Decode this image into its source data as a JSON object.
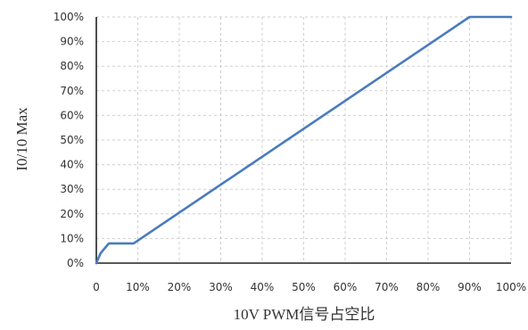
{
  "chart_data": {
    "type": "line",
    "title": "",
    "xlabel": "10V PWM信号占空比",
    "ylabel": "I0/10 Max",
    "xlim": [
      0,
      100
    ],
    "ylim": [
      0,
      100
    ],
    "x_ticks": [
      {
        "value": 0,
        "label": "0"
      },
      {
        "value": 10,
        "label": "10%"
      },
      {
        "value": 20,
        "label": "20%"
      },
      {
        "value": 30,
        "label": "30%"
      },
      {
        "value": 40,
        "label": "40%"
      },
      {
        "value": 50,
        "label": "50%"
      },
      {
        "value": 60,
        "label": "60%"
      },
      {
        "value": 70,
        "label": "70%"
      },
      {
        "value": 80,
        "label": "80%"
      },
      {
        "value": 90,
        "label": "90%"
      },
      {
        "value": 100,
        "label": "100%"
      }
    ],
    "y_ticks": [
      {
        "value": 0,
        "label": "0%"
      },
      {
        "value": 10,
        "label": "10%"
      },
      {
        "value": 20,
        "label": "20%"
      },
      {
        "value": 30,
        "label": "30%"
      },
      {
        "value": 40,
        "label": "40%"
      },
      {
        "value": 50,
        "label": "50%"
      },
      {
        "value": 60,
        "label": "60%"
      },
      {
        "value": 70,
        "label": "70%"
      },
      {
        "value": 80,
        "label": "80%"
      },
      {
        "value": 90,
        "label": "90%"
      },
      {
        "value": 100,
        "label": "100%"
      }
    ],
    "grid": true,
    "legend": "none",
    "series": [
      {
        "color": "#4a7bbf",
        "x": [
          0,
          1,
          3,
          9,
          90,
          100
        ],
        "y": [
          0,
          4,
          8,
          8,
          100,
          100
        ]
      }
    ]
  }
}
